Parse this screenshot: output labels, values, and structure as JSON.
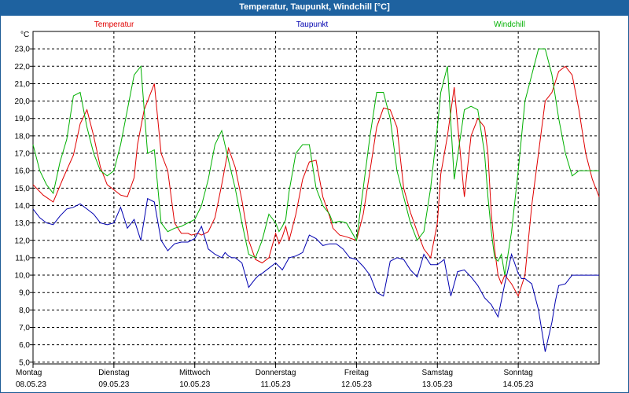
{
  "window": {
    "title": "Temperatur, Taupunkt, Windchill [°C]"
  },
  "chart_data": {
    "type": "line",
    "title": "Temperatur, Taupunkt, Windchill [°C]",
    "ylabel": "°C",
    "ylim": [
      4.9,
      24.0
    ],
    "yticks": [
      "5,0",
      "6,0",
      "7,0",
      "8,0",
      "9,0",
      "10,0",
      "11,0",
      "12,0",
      "13,0",
      "14,0",
      "15,0",
      "16,0",
      "17,0",
      "18,0",
      "19,0",
      "20,0",
      "21,0",
      "22,0",
      "23,0"
    ],
    "x_days": [
      {
        "day": "Montag",
        "date": "08.05.23"
      },
      {
        "day": "Dienstag",
        "date": "09.05.23"
      },
      {
        "day": "Mittwoch",
        "date": "10.05.23"
      },
      {
        "day": "Donnerstag",
        "date": "11.05.23"
      },
      {
        "day": "Freitag",
        "date": "12.05.23"
      },
      {
        "day": "Samstag",
        "date": "13.05.23"
      },
      {
        "day": "Sonntag",
        "date": "14.05.23"
      }
    ],
    "x_unit": "hours since 08.05.23 00:00",
    "xlim": [
      0,
      168
    ],
    "series": [
      {
        "name": "Temperatur",
        "color": "#e00000",
        "x": [
          0,
          3,
          6,
          9,
          12,
          14,
          16,
          18,
          20,
          22,
          24,
          26,
          28,
          30,
          31,
          33,
          36,
          38,
          40,
          42,
          44,
          46,
          47,
          49,
          50,
          52,
          54,
          56,
          58,
          60,
          62,
          64,
          66,
          68,
          70,
          72,
          73,
          74,
          75,
          76,
          78,
          80,
          82,
          84,
          86,
          88,
          89,
          91,
          93,
          96,
          98,
          100,
          102,
          104,
          106,
          108,
          110,
          112,
          114,
          116,
          118,
          120,
          121,
          123,
          125,
          128,
          130,
          132,
          134,
          135,
          136,
          137,
          138,
          139,
          140,
          142,
          144,
          146,
          148,
          150,
          152,
          154,
          156,
          158,
          160,
          162,
          164,
          166,
          168
        ],
        "y": [
          15.2,
          14.6,
          14.2,
          15.6,
          16.9,
          18.7,
          19.5,
          18.0,
          16.2,
          15.2,
          14.9,
          14.6,
          14.5,
          15.6,
          17.5,
          19.5,
          21.0,
          17.0,
          16.0,
          13.0,
          12.4,
          12.4,
          12.3,
          12.4,
          12.3,
          12.5,
          13.3,
          15.2,
          17.3,
          16.2,
          14.3,
          12.0,
          10.9,
          10.7,
          11.0,
          12.4,
          11.8,
          12.2,
          12.8,
          12.0,
          13.5,
          15.5,
          16.5,
          16.6,
          14.5,
          13.4,
          12.7,
          12.3,
          12.2,
          12.0,
          13.5,
          16.0,
          18.5,
          19.6,
          19.5,
          18.5,
          15.0,
          13.6,
          12.5,
          11.5,
          11.0,
          13.0,
          15.8,
          18.0,
          20.8,
          14.5,
          18.0,
          19.0,
          18.5,
          17.0,
          13.5,
          11.5,
          10.0,
          9.5,
          10.0,
          9.5,
          8.8,
          10.0,
          14.0,
          17.0,
          20.0,
          20.5,
          21.7,
          22.0,
          21.5,
          19.5,
          17.0,
          15.5,
          14.5
        ]
      },
      {
        "name": "Taupunkt",
        "color": "#0000b0",
        "x": [
          0,
          2,
          4,
          6,
          8,
          10,
          12,
          14,
          16,
          18,
          20,
          22,
          24,
          26,
          28,
          30,
          32,
          34,
          36,
          38,
          40,
          42,
          44,
          46,
          48,
          50,
          52,
          54,
          56,
          57,
          58,
          59,
          60,
          62,
          64,
          66,
          67,
          68,
          70,
          72,
          74,
          76,
          78,
          80,
          82,
          84,
          86,
          88,
          90,
          92,
          94,
          96,
          98,
          100,
          102,
          104,
          106,
          108,
          110,
          112,
          114,
          116,
          118,
          120,
          122,
          124,
          126,
          128,
          130,
          132,
          134,
          136,
          138,
          140,
          142,
          144,
          145,
          146,
          148,
          150,
          152,
          154,
          155,
          156,
          158,
          160,
          162,
          164,
          166,
          168
        ],
        "y": [
          13.8,
          13.3,
          13.0,
          12.9,
          13.4,
          13.8,
          13.9,
          14.1,
          13.8,
          13.5,
          13.0,
          12.9,
          13.0,
          13.9,
          12.7,
          13.2,
          12.0,
          14.4,
          14.2,
          12.0,
          11.4,
          11.8,
          11.9,
          11.9,
          12.1,
          12.8,
          11.5,
          11.2,
          11.0,
          11.3,
          11.1,
          11.0,
          11.0,
          10.7,
          9.3,
          9.8,
          10.0,
          10.1,
          10.4,
          10.7,
          10.3,
          11.0,
          11.1,
          11.3,
          12.3,
          12.1,
          11.7,
          11.8,
          11.8,
          11.5,
          11.0,
          10.9,
          10.5,
          10.0,
          9.0,
          8.8,
          10.8,
          11.0,
          10.9,
          10.3,
          9.9,
          11.2,
          10.6,
          10.6,
          10.9,
          8.8,
          10.2,
          10.3,
          9.9,
          9.4,
          8.7,
          8.3,
          7.6,
          9.5,
          11.2,
          10.1,
          9.8,
          9.8,
          9.5,
          8.0,
          5.6,
          7.3,
          8.5,
          9.4,
          9.5,
          10.0,
          10.0,
          10.0,
          10.0,
          10.0
        ]
      },
      {
        "name": "Windchill",
        "color": "#00b000",
        "x": [
          0,
          2,
          4,
          6,
          8,
          10,
          12,
          14,
          16,
          18,
          20,
          22,
          24,
          26,
          28,
          30,
          32,
          34,
          36,
          38,
          40,
          42,
          44,
          46,
          48,
          50,
          52,
          54,
          56,
          58,
          60,
          62,
          64,
          66,
          68,
          70,
          72,
          73,
          74,
          75,
          76,
          78,
          80,
          82,
          84,
          86,
          88,
          89,
          91,
          93,
          96,
          98,
          100,
          102,
          104,
          106,
          108,
          110,
          112,
          114,
          116,
          118,
          120,
          121,
          123,
          125,
          128,
          130,
          132,
          134,
          135,
          136,
          137,
          138,
          139,
          140,
          142,
          144,
          146,
          148,
          150,
          152,
          154,
          156,
          158,
          160,
          162,
          164,
          166,
          168
        ],
        "y": [
          17.5,
          16.0,
          15.2,
          14.7,
          16.5,
          17.8,
          20.3,
          20.5,
          18.5,
          17.0,
          16.0,
          15.7,
          16.0,
          17.5,
          19.5,
          21.5,
          22.0,
          17.0,
          17.2,
          13.0,
          12.5,
          12.7,
          12.8,
          13.0,
          13.2,
          14.0,
          15.5,
          17.5,
          18.3,
          16.6,
          15.0,
          13.0,
          11.2,
          11.0,
          12.0,
          13.5,
          13.0,
          12.5,
          12.8,
          13.2,
          14.8,
          17.0,
          17.5,
          17.5,
          15.0,
          14.0,
          13.5,
          13.0,
          13.1,
          13.0,
          12.0,
          15.0,
          18.0,
          20.5,
          20.5,
          19.0,
          16.0,
          14.5,
          13.0,
          12.0,
          12.5,
          15.0,
          18.5,
          20.5,
          22.0,
          15.5,
          19.5,
          19.7,
          19.5,
          17.0,
          14.5,
          12.5,
          11.0,
          10.8,
          11.2,
          10.0,
          12.5,
          16.0,
          20.0,
          21.5,
          23.0,
          23.0,
          21.5,
          19.0,
          17.0,
          15.7,
          16.0,
          16.0,
          16.0,
          16.0
        ]
      }
    ]
  }
}
